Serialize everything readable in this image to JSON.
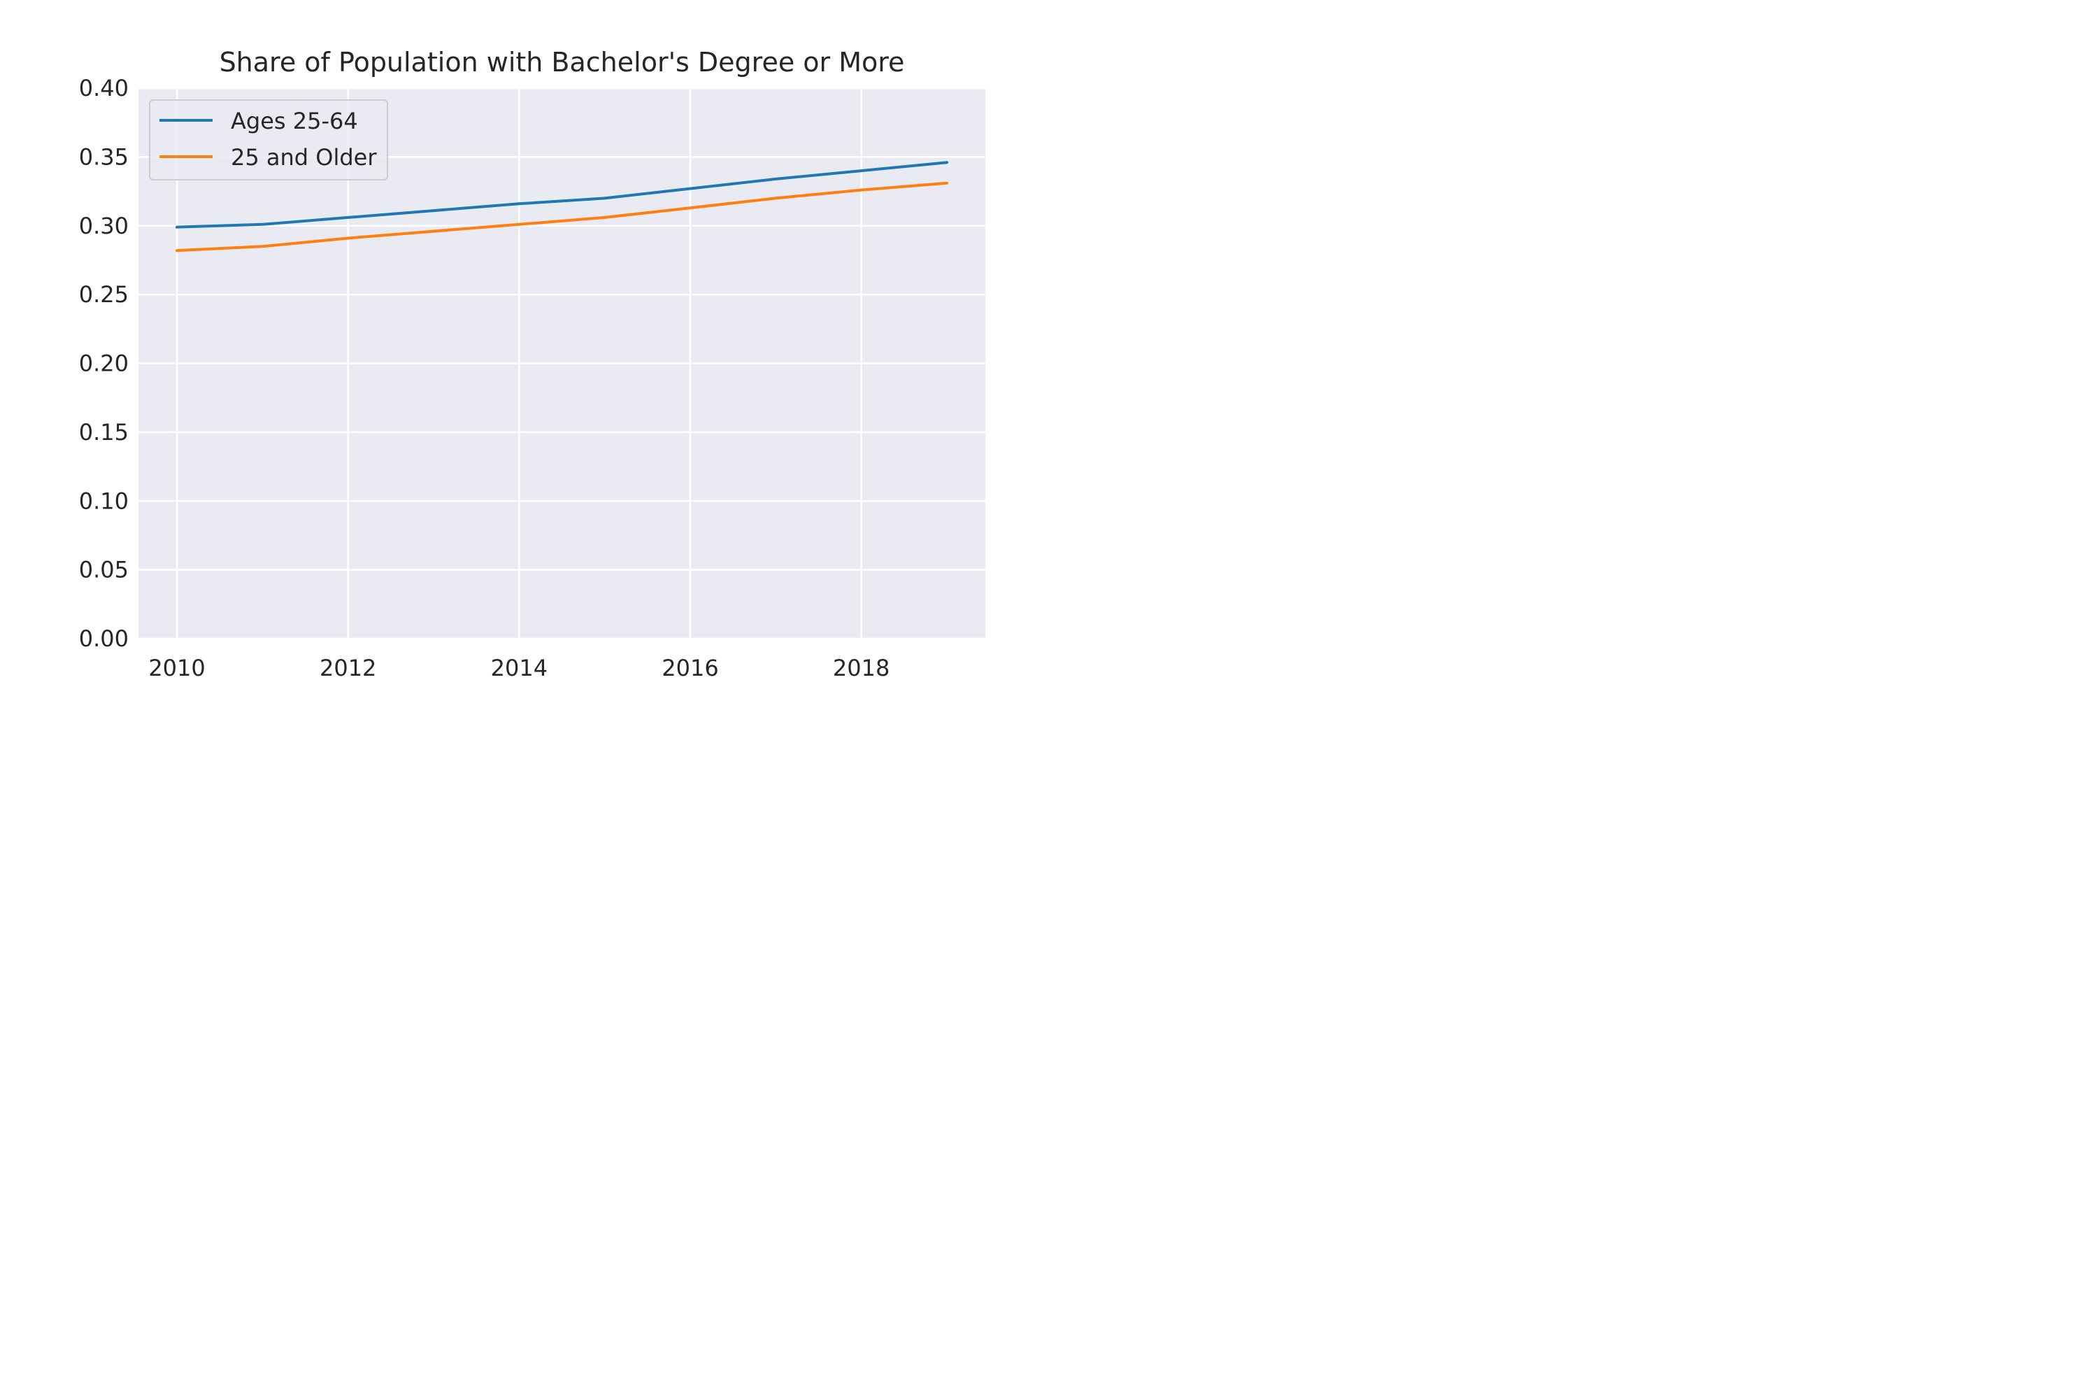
{
  "chart_data": {
    "type": "line",
    "title": "Share of Population with Bachelor's Degree or More",
    "xlabel": "",
    "ylabel": "",
    "x": [
      2010,
      2011,
      2012,
      2013,
      2014,
      2015,
      2016,
      2017,
      2018,
      2019
    ],
    "xlim": [
      2009.55,
      2019.45
    ],
    "ylim": [
      0,
      0.4
    ],
    "x_ticks": [
      2010,
      2012,
      2014,
      2016,
      2018
    ],
    "x_tick_labels": [
      "2010",
      "2012",
      "2014",
      "2016",
      "2018"
    ],
    "y_ticks": [
      0,
      0.05,
      0.1,
      0.15,
      0.2,
      0.25,
      0.3,
      0.35,
      0.4
    ],
    "y_tick_labels": [
      "0.00",
      "0.05",
      "0.10",
      "0.15",
      "0.20",
      "0.25",
      "0.30",
      "0.35",
      "0.40"
    ],
    "grid": true,
    "legend_position": "top-left",
    "background_color": "#eaeaf2",
    "grid_color": "#ffffff",
    "series": [
      {
        "name": "Ages 25-64",
        "color": "#1f77b4",
        "values": [
          0.299,
          0.301,
          0.306,
          0.311,
          0.316,
          0.32,
          0.327,
          0.334,
          0.34,
          0.346
        ]
      },
      {
        "name": "25 and Older",
        "color": "#ff7f0e",
        "values": [
          0.282,
          0.285,
          0.291,
          0.296,
          0.301,
          0.306,
          0.313,
          0.32,
          0.326,
          0.331
        ]
      }
    ]
  }
}
